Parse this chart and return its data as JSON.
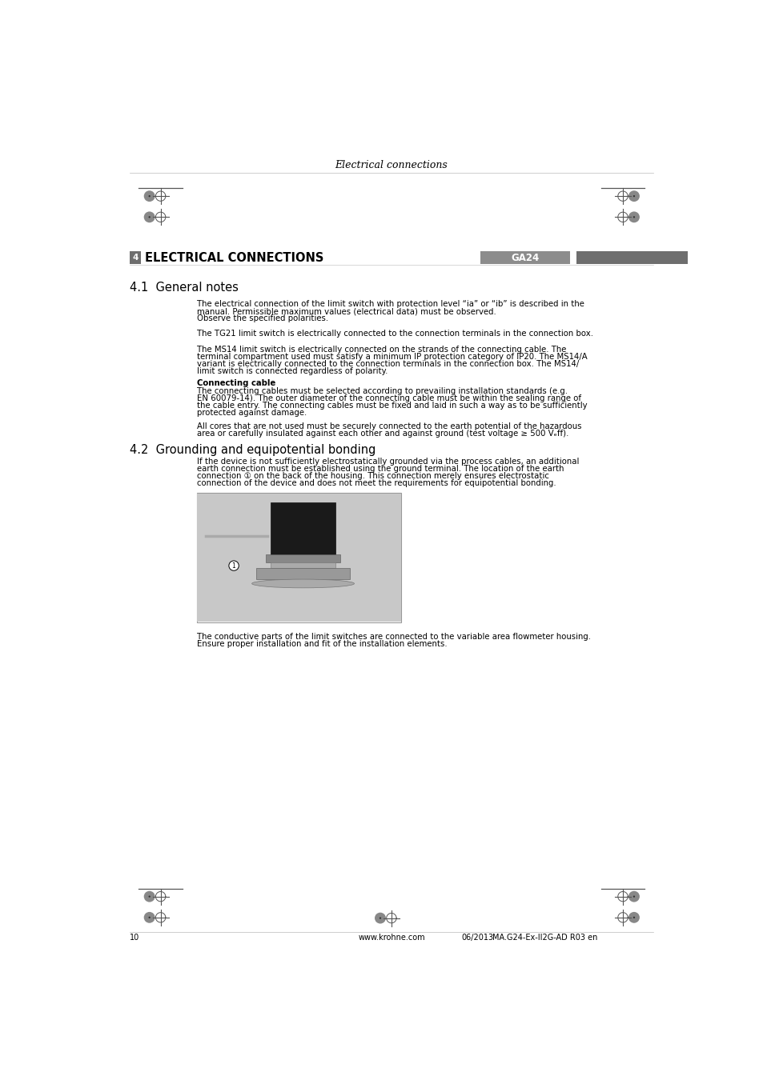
{
  "page_header": "Electrical connections",
  "chapter_number": "4",
  "chapter_title": "ELECTRICAL CONNECTIONS",
  "chapter_tag": "GA24",
  "section_41_title": "4.1  General notes",
  "section_41_para1_line1": "The electrical connection of the limit switch with protection level “ia” or “ib” is described in the",
  "section_41_para1_line2": "manual. Permissible maximum values (electrical data) must be observed.",
  "section_41_para1_line3": "Observe the specified polarities.",
  "section_41_para2": "The TG21 limit switch is electrically connected to the connection terminals in the connection box.",
  "section_41_para3_line1": "The MS14 limit switch is electrically connected on the strands of the connecting cable. The",
  "section_41_para3_line2": "terminal compartment used must satisfy a minimum IP protection category of IP20. The MS14/A",
  "section_41_para3_line3": "variant is electrically connected to the connection terminals in the connection box. The MS14/",
  "section_41_para3_line4": "limit switch is connected regardless of polarity.",
  "connecting_cable_title": "Connecting cable",
  "section_41_para4_line1": "The connecting cables must be selected according to prevailing installation standards (e.g.",
  "section_41_para4_line2": "EN 60079-14). The outer diameter of the connecting cable must be within the sealing range of",
  "section_41_para4_line3": "the cable entry. The connecting cables must be fixed and laid in such a way as to be sufficiently",
  "section_41_para4_line4": "protected against damage.",
  "section_41_para5_line1": "All cores that are not used must be securely connected to the earth potential of the hazardous",
  "section_41_para5_line2": "area or carefully insulated against each other and against ground (test voltage ≥ 500 Vₑff).",
  "section_42_title": "4.2  Grounding and equipotential bonding",
  "section_42_para1_line1": "If the device is not sufficiently electrostatically grounded via the process cables, an additional",
  "section_42_para1_line2": "earth connection must be established using the ground terminal. The location of the earth",
  "section_42_para1_line3": "connection ① on the back of the housing. This connection merely ensures electrostatic",
  "section_42_para1_line4": "connection of the device and does not meet the requirements for equipotential bonding.",
  "section_42_para2_line1": "The conductive parts of the limit switches are connected to the variable area flowmeter housing.",
  "section_42_para2_line2": "Ensure proper installation and fit of the installation elements.",
  "footer_page": "10",
  "footer_url": "www.krohne.com",
  "footer_date": "06/2013",
  "footer_bullet": "·",
  "footer_doc": "MA.G24-Ex-II2G-AD R03 en",
  "bg_color": "#ffffff",
  "text_color": "#000000",
  "header_bar_light": "#999999",
  "header_bar_dark": "#555555",
  "chapter_num_box_color": "#6e6e6e",
  "tag_bar_color": "#8c8c8c",
  "right_bar_color": "#6e6e6e",
  "footer_line_color": "#cccccc",
  "margin_line_color": "#aaaaaa",
  "crosshair_color": "#555555",
  "circle_fill_color": "#888888"
}
